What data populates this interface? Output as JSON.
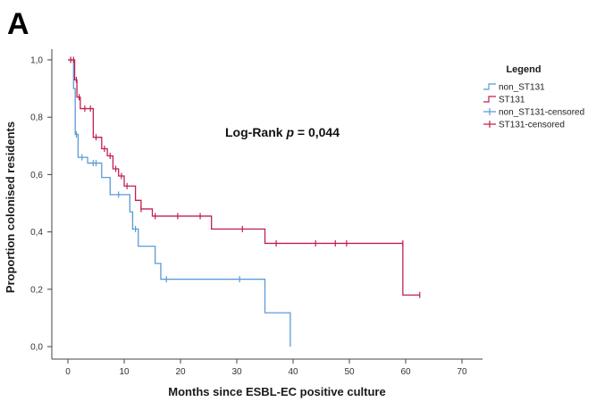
{
  "panel_label": "A",
  "chart_data": {
    "type": "line",
    "subtype": "kaplan-meier",
    "xlabel": "Months since ESBL-EC positive culture",
    "ylabel": "Proportion colonised residents",
    "xlim": [
      0,
      70
    ],
    "ylim": [
      0,
      1
    ],
    "x_ticks": [
      0,
      10,
      20,
      30,
      40,
      50,
      60,
      70
    ],
    "y_ticks": [
      "0,0",
      "0,2",
      "0,4",
      "0,6",
      "0,8",
      "1,0"
    ],
    "y_tick_values": [
      0,
      0.2,
      0.4,
      0.6,
      0.8,
      1.0
    ],
    "grid": false,
    "legend": {
      "title": "Legend",
      "placement": "top-right",
      "entries": [
        "non_ST131",
        "ST131",
        "non_ST131-censored",
        "ST131-censored"
      ]
    },
    "annotation": {
      "prefix": "Log-Rank ",
      "p_symbol": "p",
      "suffix": " = 0,044"
    },
    "series": [
      {
        "name": "non_ST131",
        "color": "#5b9bd5",
        "steps": [
          [
            0,
            1.0
          ],
          [
            1,
            0.9
          ],
          [
            1.3,
            0.74
          ],
          [
            1.8,
            0.66
          ],
          [
            3.5,
            0.64
          ],
          [
            6,
            0.59
          ],
          [
            7.5,
            0.53
          ],
          [
            11,
            0.47
          ],
          [
            11.5,
            0.41
          ],
          [
            12.5,
            0.35
          ],
          [
            15.5,
            0.29
          ],
          [
            16.5,
            0.235
          ],
          [
            35,
            0.118
          ],
          [
            39.5,
            0.0
          ]
        ],
        "end_x": 39.5,
        "censored": [
          [
            0.5,
            1.0
          ],
          [
            1.5,
            0.74
          ],
          [
            2.5,
            0.66
          ],
          [
            4.5,
            0.64
          ],
          [
            5,
            0.64
          ],
          [
            9,
            0.53
          ],
          [
            11.5,
            0.46
          ],
          [
            12,
            0.41
          ],
          [
            17.5,
            0.235
          ],
          [
            30.5,
            0.235
          ]
        ]
      },
      {
        "name": "ST131",
        "color": "#c0204f",
        "steps": [
          [
            0,
            1.0
          ],
          [
            1.2,
            0.93
          ],
          [
            1.6,
            0.87
          ],
          [
            2.2,
            0.83
          ],
          [
            4.5,
            0.73
          ],
          [
            6,
            0.69
          ],
          [
            7,
            0.665
          ],
          [
            8,
            0.62
          ],
          [
            9,
            0.595
          ],
          [
            10,
            0.56
          ],
          [
            12,
            0.51
          ],
          [
            13,
            0.48
          ],
          [
            15,
            0.455
          ],
          [
            25.5,
            0.41
          ],
          [
            35,
            0.36
          ],
          [
            59.5,
            0.18
          ]
        ],
        "end_x": 62.5,
        "censored": [
          [
            0.5,
            1.0
          ],
          [
            1,
            1.0
          ],
          [
            1.5,
            0.93
          ],
          [
            2,
            0.87
          ],
          [
            3,
            0.83
          ],
          [
            4,
            0.83
          ],
          [
            5,
            0.73
          ],
          [
            6.5,
            0.69
          ],
          [
            7.5,
            0.665
          ],
          [
            8.5,
            0.62
          ],
          [
            9.5,
            0.595
          ],
          [
            10.5,
            0.56
          ],
          [
            13,
            0.48
          ],
          [
            15.5,
            0.455
          ],
          [
            19.5,
            0.455
          ],
          [
            23.5,
            0.455
          ],
          [
            31,
            0.41
          ],
          [
            37,
            0.36
          ],
          [
            44,
            0.36
          ],
          [
            47.5,
            0.36
          ],
          [
            49.5,
            0.36
          ],
          [
            59.5,
            0.36
          ],
          [
            62.5,
            0.18
          ]
        ]
      }
    ]
  }
}
